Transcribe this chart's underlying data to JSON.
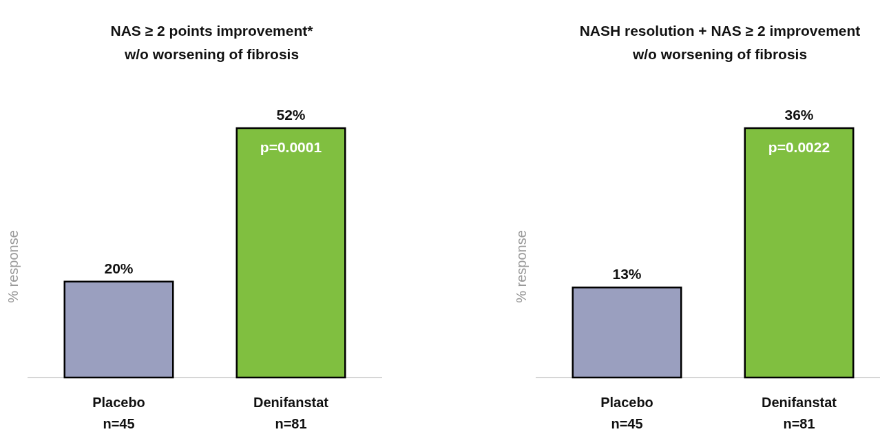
{
  "chart_data": [
    {
      "type": "bar",
      "title": "NAS ≥ 2 points improvement*\nw/o worsening of fibrosis",
      "ylabel": "% response",
      "categories": [
        "Placebo\nn=45",
        "Denifanstat\nn=81"
      ],
      "values": [
        20,
        52
      ],
      "colors": [
        "#9a9fbf",
        "#80bf40"
      ],
      "data_labels": true,
      "value_labels": [
        "20%",
        "52%"
      ],
      "annotations": [
        "p=0.0001"
      ]
    },
    {
      "type": "bar",
      "title": "NASH resolution + NAS ≥ 2 improvement\nw/o worsening of fibrosis",
      "ylabel": "% response",
      "categories": [
        "Placebo\nn=45",
        "Denifanstat\nn=81"
      ],
      "values": [
        13,
        36
      ],
      "colors": [
        "#9a9fbf",
        "#80bf40"
      ],
      "data_labels": true,
      "value_labels": [
        "13%",
        "36%"
      ],
      "annotations": [
        "p=0.0022"
      ]
    }
  ]
}
